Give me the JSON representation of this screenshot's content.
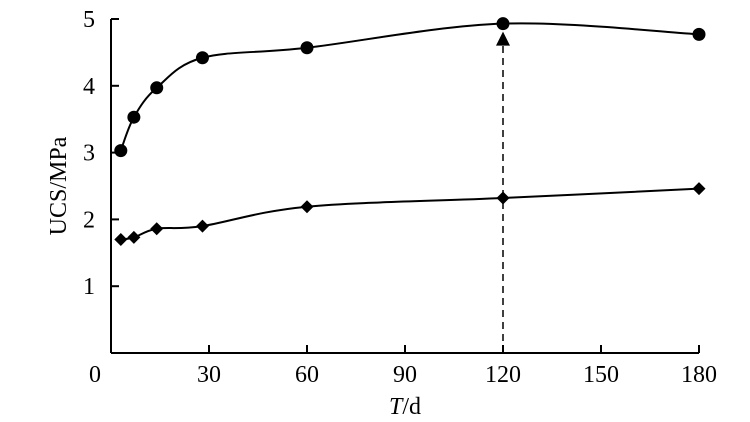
{
  "chart_data": {
    "type": "line",
    "xlabel_italic": "T",
    "xlabel_rest": "/d",
    "ylabel": "UCS/MPa",
    "xlim": [
      0,
      180
    ],
    "ylim": [
      0,
      5
    ],
    "xticks": [
      0,
      30,
      60,
      90,
      120,
      150,
      180
    ],
    "yticks": [
      1,
      2,
      3,
      4,
      5
    ],
    "grid": false,
    "series": [
      {
        "marker": "circle",
        "x": [
          3,
          7,
          14,
          28,
          60,
          120,
          180
        ],
        "y": [
          3.03,
          3.53,
          3.97,
          4.42,
          4.57,
          4.93,
          4.77
        ]
      },
      {
        "marker": "diamond",
        "x": [
          3,
          7,
          14,
          28,
          60,
          120,
          180
        ],
        "y": [
          1.7,
          1.73,
          1.86,
          1.9,
          2.19,
          2.32,
          2.46
        ]
      }
    ],
    "annotation": {
      "type": "dashed-arrow",
      "x": 120,
      "y_from": 2.32,
      "y_to": 4.93
    }
  }
}
